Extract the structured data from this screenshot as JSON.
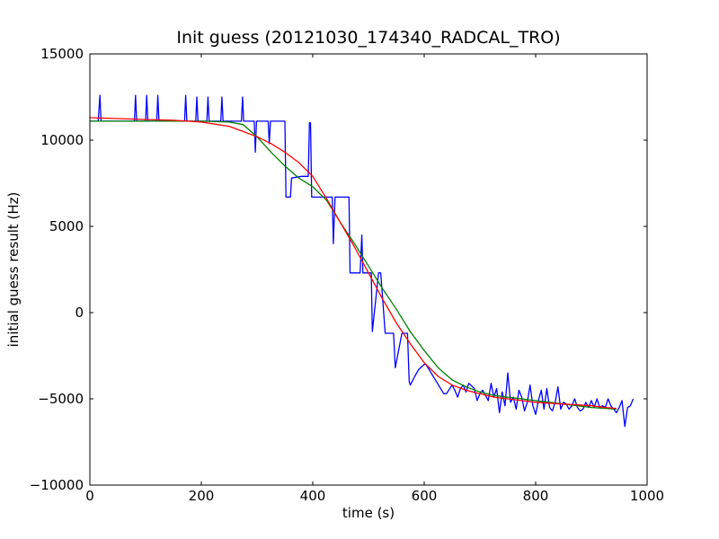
{
  "chart_data": {
    "type": "line",
    "title": "Init guess (20121030_174340_RADCAL_TRO)",
    "xlabel": "time (s)",
    "ylabel": "initial guess result (Hz)",
    "xlim": [
      0,
      1000
    ],
    "ylim": [
      -10000,
      15000
    ],
    "x_ticks": [
      0,
      200,
      400,
      600,
      800,
      1000
    ],
    "y_ticks": [
      -10000,
      -5000,
      0,
      5000,
      10000,
      15000
    ],
    "x_tick_labels": [
      "0",
      "200",
      "400",
      "600",
      "800",
      "1000"
    ],
    "y_tick_labels": [
      "−10000",
      "−5000",
      "0",
      "5000",
      "10000",
      "15000"
    ],
    "grid": false,
    "series": [
      {
        "color": "#0000ff",
        "x": [
          0,
          15,
          18,
          20,
          80,
          82,
          84,
          100,
          102,
          104,
          120,
          122,
          124,
          170,
          172,
          174,
          190,
          192,
          194,
          210,
          212,
          214,
          235,
          237,
          239,
          272,
          274,
          276,
          295,
          297,
          299,
          320,
          322,
          324,
          350,
          352,
          360,
          362,
          380,
          392,
          394,
          396,
          398,
          425,
          435,
          437,
          440,
          442,
          465,
          467,
          485,
          488,
          490,
          505,
          507,
          518,
          520,
          522,
          530,
          532,
          545,
          548,
          560,
          570,
          573,
          575,
          583,
          590,
          600,
          603,
          635,
          640,
          650,
          655,
          660,
          665,
          670,
          675,
          680,
          690,
          695,
          700,
          705,
          710,
          715,
          720,
          725,
          730,
          735,
          740,
          745,
          750,
          755,
          760,
          765,
          770,
          775,
          780,
          785,
          790,
          795,
          800,
          805,
          810,
          815,
          820,
          825,
          830,
          835,
          840,
          845,
          850,
          855,
          860,
          865,
          870,
          875,
          880,
          885,
          890,
          895,
          900,
          905,
          910,
          915,
          920,
          925,
          930,
          935,
          940,
          945,
          950,
          955,
          960,
          965,
          970,
          975
        ],
        "y": [
          11100,
          11100,
          12600,
          11100,
          11100,
          12600,
          11100,
          11100,
          12600,
          11100,
          11100,
          12600,
          11100,
          11100,
          12600,
          11100,
          11100,
          12500,
          11100,
          11100,
          12500,
          11100,
          11100,
          12500,
          11100,
          11100,
          12500,
          11100,
          11100,
          9300,
          11100,
          11100,
          9800,
          11100,
          11100,
          6700,
          6700,
          7800,
          7900,
          7900,
          11000,
          11000,
          6700,
          6700,
          6700,
          4000,
          6700,
          6700,
          6700,
          2300,
          2300,
          4500,
          2300,
          2300,
          -1100,
          2300,
          2300,
          2300,
          -1200,
          -1200,
          -1200,
          -3200,
          -1200,
          -1200,
          -4000,
          -4200,
          -3700,
          -3300,
          -3000,
          -3000,
          -4700,
          -4700,
          -4200,
          -4500,
          -4900,
          -4400,
          -4200,
          -4600,
          -4100,
          -4400,
          -5100,
          -4700,
          -4500,
          -4800,
          -5100,
          -4100,
          -4900,
          -4400,
          -5800,
          -4600,
          -5400,
          -3500,
          -5200,
          -4900,
          -5600,
          -4500,
          -4900,
          -5700,
          -5200,
          -4200,
          -5400,
          -5900,
          -5100,
          -4500,
          -5600,
          -4400,
          -5500,
          -5700,
          -5200,
          -4300,
          -5600,
          -5200,
          -5300,
          -5600,
          -5400,
          -5000,
          -5500,
          -5700,
          -5600,
          -5200,
          -5500,
          -5100,
          -5500,
          -5000,
          -5500,
          -5400,
          -5500,
          -5000,
          -5400,
          -5600,
          -5800,
          -5500,
          -5100,
          -6600,
          -5500,
          -5400,
          -5000
        ],
        "note_x": [
          0,
          975
        ]
      },
      {
        "color": "#008000",
        "x": [
          0,
          50,
          100,
          150,
          200,
          250,
          275,
          300,
          325,
          350,
          375,
          400,
          425,
          450,
          475,
          500,
          525,
          550,
          575,
          600,
          625,
          650,
          675,
          700,
          725,
          750,
          775,
          800,
          825,
          850,
          875,
          900,
          925,
          945
        ],
        "y": [
          11100,
          11100,
          11100,
          11100,
          11100,
          11050,
          10900,
          10200,
          9300,
          8500,
          7800,
          7300,
          6500,
          5200,
          4000,
          2700,
          1400,
          200,
          -1100,
          -2200,
          -3200,
          -3900,
          -4300,
          -4600,
          -4800,
          -4900,
          -5000,
          -5100,
          -5200,
          -5300,
          -5400,
          -5500,
          -5550,
          -5600
        ]
      },
      {
        "color": "#ff0000",
        "x": [
          0,
          50,
          100,
          150,
          200,
          250,
          275,
          300,
          325,
          350,
          375,
          400,
          425,
          450,
          475,
          500,
          525,
          550,
          575,
          600,
          625,
          650,
          675,
          700,
          725,
          750,
          775,
          800,
          825,
          850,
          875,
          900,
          925,
          945
        ],
        "y": [
          11300,
          11250,
          11200,
          11150,
          11050,
          10800,
          10500,
          10200,
          9800,
          9300,
          8700,
          7900,
          6600,
          5200,
          3800,
          2300,
          800,
          -600,
          -1800,
          -2900,
          -3700,
          -4200,
          -4500,
          -4700,
          -4900,
          -5000,
          -5100,
          -5200,
          -5250,
          -5300,
          -5350,
          -5400,
          -5500,
          -5550
        ]
      }
    ]
  }
}
